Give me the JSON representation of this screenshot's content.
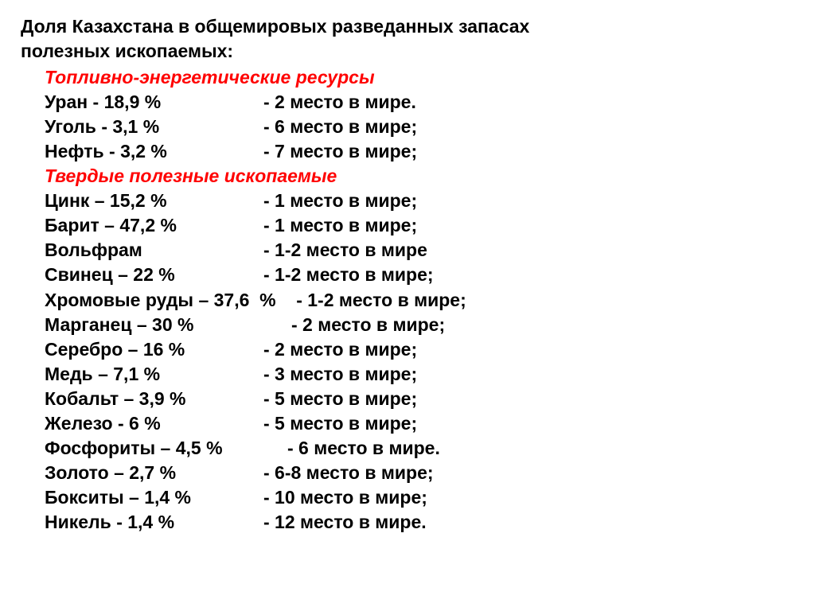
{
  "title_l1": "Доля Казахстана в общемировых разведанных запасах",
  "title_l2": "полезных ископаемых:",
  "heading_energy": "Топливно-энергетические ресурсы",
  "energy": [
    {
      "left": "Уран  - 18,9 %",
      "right": "- 2 место в мире.",
      "left_w": 275
    },
    {
      "left": "Уголь -  3,1  %",
      "right": "- 6 место в мире;",
      "left_w": 275
    },
    {
      "left": "Нефть - 3,2 %",
      "right": "- 7 место в мире;",
      "left_w": 275
    }
  ],
  "heading_solid": "Твердые полезные ископаемые",
  "solid": [
    {
      "left": "Цинк – 15,2 %",
      "right": "- 1 место в мире;",
      "left_w": 275
    },
    {
      "left": "Барит – 47,2 %",
      "right": "- 1 место в мире;",
      "left_w": 275
    },
    {
      "left": "Вольфрам",
      "right": "- 1-2 место в мире",
      "left_w": 275
    },
    {
      "left": "Свинец – 22 %",
      "right": "- 1-2 место в мире;",
      "left_w": 275
    },
    {
      "left": "Хромовые руды – 37,6  %    ",
      "right": "- 1-2 место в мире;",
      "left_w": null
    },
    {
      "left": "Марганец – 30 %",
      "right": "- 2 место в мире;",
      "left_w": 310
    },
    {
      "left": "Серебро – 16 %",
      "right": "- 2 место в мире;",
      "left_w": 275
    },
    {
      "left": "Медь – 7,1 %",
      "right": "- 3 место в мире;",
      "left_w": 275
    },
    {
      "left": "Кобальт – 3,9 %",
      "right": "- 5 место в мире;",
      "left_w": 275
    },
    {
      "left": "Железо -  6  %",
      "right": "- 5 место в мире;",
      "left_w": 275
    },
    {
      "left": "Фосфориты – 4,5 %",
      "right": "- 6 место в мире.",
      "left_w": 305
    },
    {
      "left": "Золото – 2,7 %",
      "right": "- 6-8 место в мире;",
      "left_w": 275
    },
    {
      "left": "Бокситы – 1,4 %",
      "right": "- 10 место в мире;",
      "left_w": 275
    },
    {
      "left": "Никель  -  1,4 %",
      "right": "- 12 место в мире.",
      "left_w": 275
    }
  ]
}
